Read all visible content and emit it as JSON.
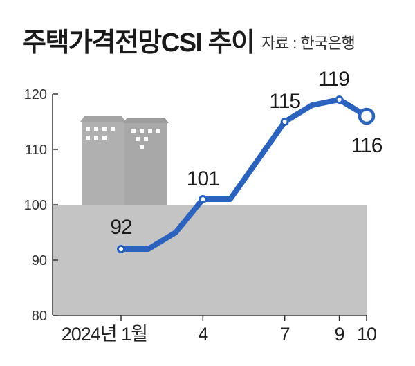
{
  "title": "주택가격전망CSI 추이",
  "source": "자료 : 한국은행",
  "chart_data": {
    "type": "line",
    "x": [
      "2024-01",
      "2024-02",
      "2024-03",
      "2024-04",
      "2024-05",
      "2024-06",
      "2024-07",
      "2024-08",
      "2024-09",
      "2024-10"
    ],
    "values": [
      92,
      92,
      95,
      101,
      101,
      108,
      115,
      118,
      119,
      116
    ],
    "x_tick_labels": [
      {
        "text": "2024년 1월",
        "index": 0
      },
      {
        "text": "4",
        "index": 3
      },
      {
        "text": "7",
        "index": 6
      },
      {
        "text": "9",
        "index": 8
      },
      {
        "text": "10",
        "index": 9
      }
    ],
    "data_labels": [
      {
        "text": "92",
        "index": 0
      },
      {
        "text": "101",
        "index": 3
      },
      {
        "text": "115",
        "index": 6
      },
      {
        "text": "119",
        "index": 8
      },
      {
        "text": "116",
        "index": 9
      }
    ],
    "y_ticks": [
      80,
      90,
      100,
      110,
      120
    ],
    "ylim": [
      80,
      120
    ],
    "baseline": 100,
    "grid": false,
    "line_color": "#2a62bd",
    "baseline_area_color": "#c4c4c4",
    "building_color": "#b0b0b0"
  }
}
